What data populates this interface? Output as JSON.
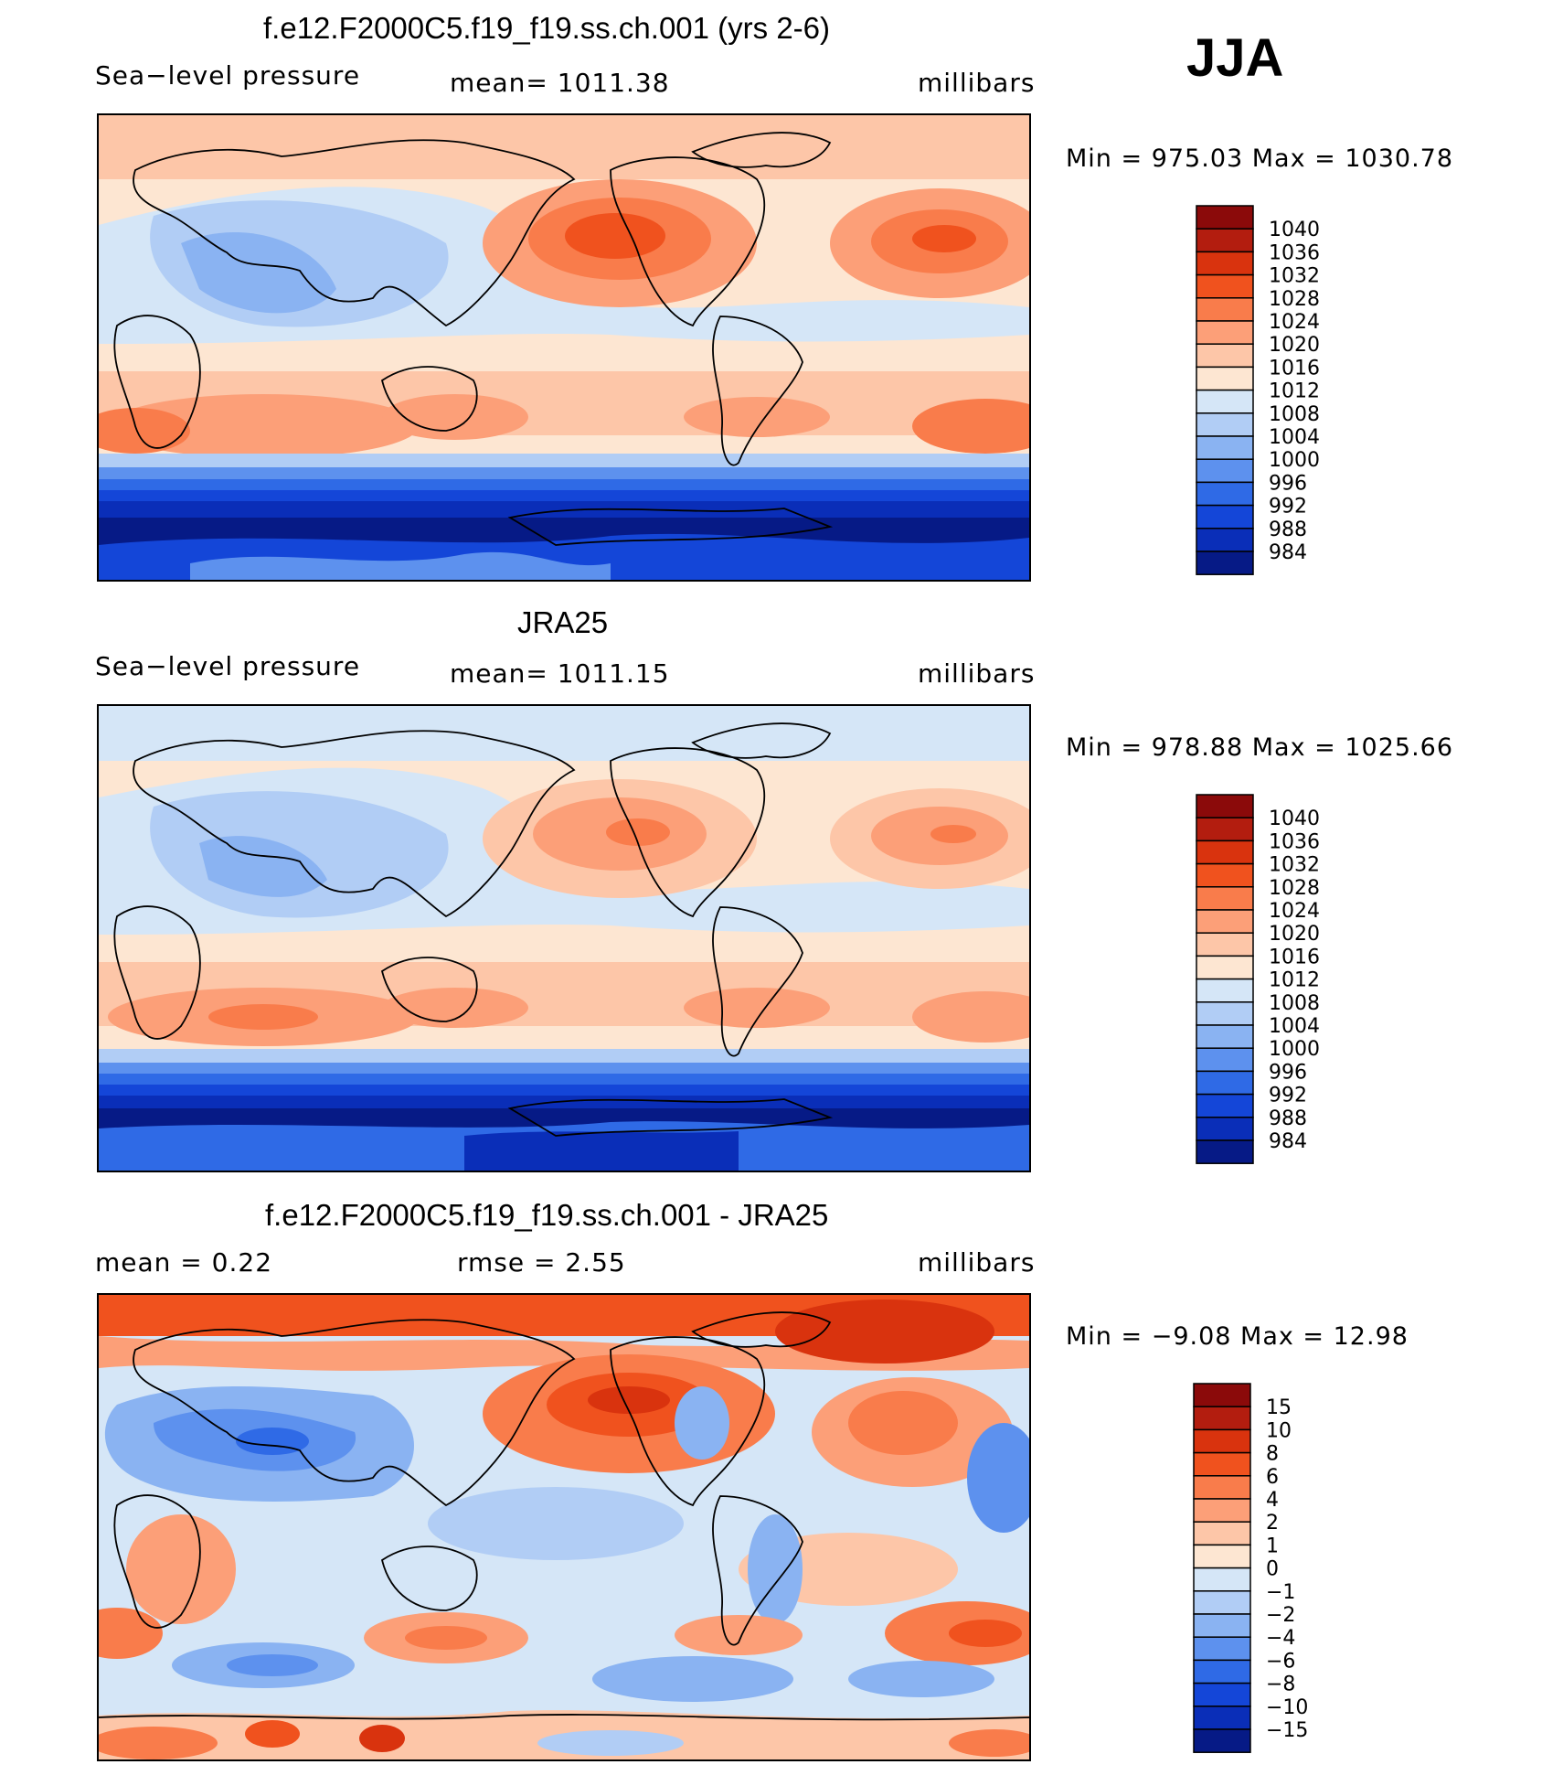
{
  "season": "JJA",
  "chart_data": [
    {
      "type": "heatmap",
      "title": "f.e12.F2000C5.f19_f19.ss.ch.001 (yrs 2-6)",
      "left_label": "Sea−level pressure",
      "center_label": "mean=  1011.38",
      "units": "millibars",
      "min_max": "Min  =  975.03  Max  =  1030.78",
      "colorbar_levels": [
        "1040",
        "1036",
        "1032",
        "1028",
        "1024",
        "1020",
        "1016",
        "1012",
        "1008",
        "1004",
        "1000",
        "996",
        "992",
        "988",
        "984"
      ],
      "colorbar_colors": [
        "#8b0a0a",
        "#b31d0f",
        "#d9330e",
        "#f0521e",
        "#f97c4b",
        "#fc9f78",
        "#fdc6a8",
        "#fde6d2",
        "#d5e6f7",
        "#b1cdf5",
        "#8ab3f2",
        "#5d91ee",
        "#2f6ae6",
        "#1446d8",
        "#0a2eb8",
        "#061a86"
      ]
    },
    {
      "type": "heatmap",
      "title": "JRA25",
      "left_label": "Sea−level pressure",
      "center_label": "mean=  1011.15",
      "units": "millibars",
      "min_max": "Min  =  978.88  Max  =  1025.66",
      "colorbar_levels": [
        "1040",
        "1036",
        "1032",
        "1028",
        "1024",
        "1020",
        "1016",
        "1012",
        "1008",
        "1004",
        "1000",
        "996",
        "992",
        "988",
        "984"
      ],
      "colorbar_colors": [
        "#8b0a0a",
        "#b31d0f",
        "#d9330e",
        "#f0521e",
        "#f97c4b",
        "#fc9f78",
        "#fdc6a8",
        "#fde6d2",
        "#d5e6f7",
        "#b1cdf5",
        "#8ab3f2",
        "#5d91ee",
        "#2f6ae6",
        "#1446d8",
        "#0a2eb8",
        "#061a86"
      ]
    },
    {
      "type": "heatmap",
      "title": "f.e12.F2000C5.f19_f19.ss.ch.001 - JRA25",
      "left_label": "mean  =      0.22",
      "center_label": "rmse  =      2.55",
      "units": "millibars",
      "min_max": "Min  =    −9.08  Max  =     12.98",
      "colorbar_levels": [
        "15",
        "10",
        "8",
        "6",
        "4",
        "2",
        "1",
        "0",
        "−1",
        "−2",
        "−4",
        "−6",
        "−8",
        "−10",
        "−15"
      ],
      "colorbar_colors": [
        "#8b0a0a",
        "#b31d0f",
        "#d9330e",
        "#f0521e",
        "#f97c4b",
        "#fc9f78",
        "#fdc6a8",
        "#fde6d2",
        "#d5e6f7",
        "#b1cdf5",
        "#8ab3f2",
        "#5d91ee",
        "#2f6ae6",
        "#1446d8",
        "#0a2eb8",
        "#061a86"
      ]
    }
  ]
}
